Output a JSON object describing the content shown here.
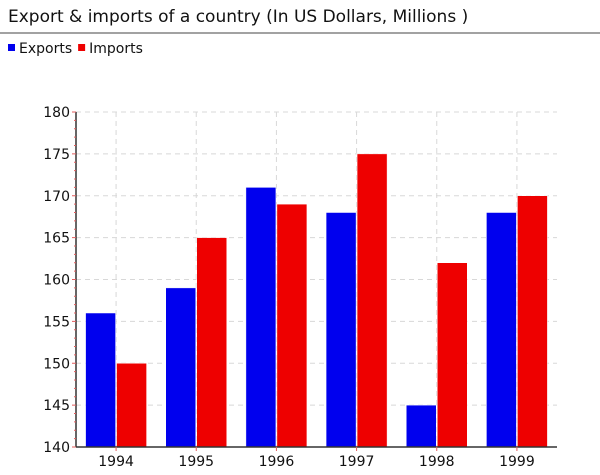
{
  "chart_data": {
    "type": "bar",
    "title": "Export & imports of a country  (In US Dollars, Millions )",
    "categories": [
      "1994",
      "1995",
      "1996",
      "1997",
      "1998",
      "1999"
    ],
    "series": [
      {
        "name": "Exports",
        "color": "#0000ee",
        "values": [
          156,
          159,
          171,
          168,
          145,
          168
        ]
      },
      {
        "name": "Imports",
        "color": "#ee0000",
        "values": [
          150,
          165,
          169,
          175,
          162,
          170
        ]
      }
    ],
    "ylim": [
      140,
      180
    ],
    "yticks": [
      140,
      145,
      150,
      155,
      160,
      165,
      170,
      175,
      180
    ],
    "grid": true,
    "legend_position": "top-left"
  }
}
